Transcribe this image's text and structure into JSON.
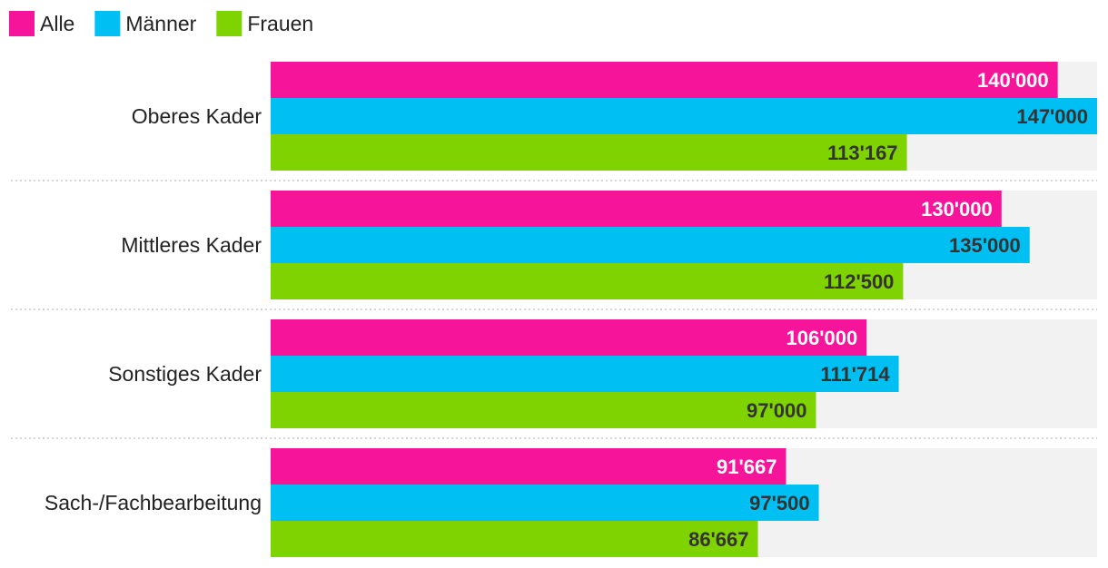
{
  "chart_data": {
    "type": "bar",
    "orientation": "horizontal",
    "categories": [
      "Oberes Kader",
      "Mittleres Kader",
      "Sonstiges Kader",
      "Sach-/Fachbearbeitung"
    ],
    "series": [
      {
        "name": "Alle",
        "color": "#f5149a",
        "label_color": "#ffffff",
        "values": [
          140000,
          130000,
          106000,
          91667
        ],
        "labels": [
          "140'000",
          "130'000",
          "106'000",
          "91'667"
        ]
      },
      {
        "name": "Männer",
        "color": "#00bff3",
        "label_color": "#333333",
        "values": [
          147000,
          135000,
          111714,
          97500
        ],
        "labels": [
          "147'000",
          "135'000",
          "111'714",
          "97'500"
        ]
      },
      {
        "name": "Frauen",
        "color": "#7ed300",
        "label_color": "#333333",
        "values": [
          113167,
          112500,
          97000,
          86667
        ],
        "labels": [
          "113'167",
          "112'500",
          "97'000",
          "86'667"
        ]
      }
    ],
    "xlim": [
      0,
      147000
    ],
    "legend_position": "top-left",
    "background_track_color": "#f2f2f2",
    "grid": false
  }
}
